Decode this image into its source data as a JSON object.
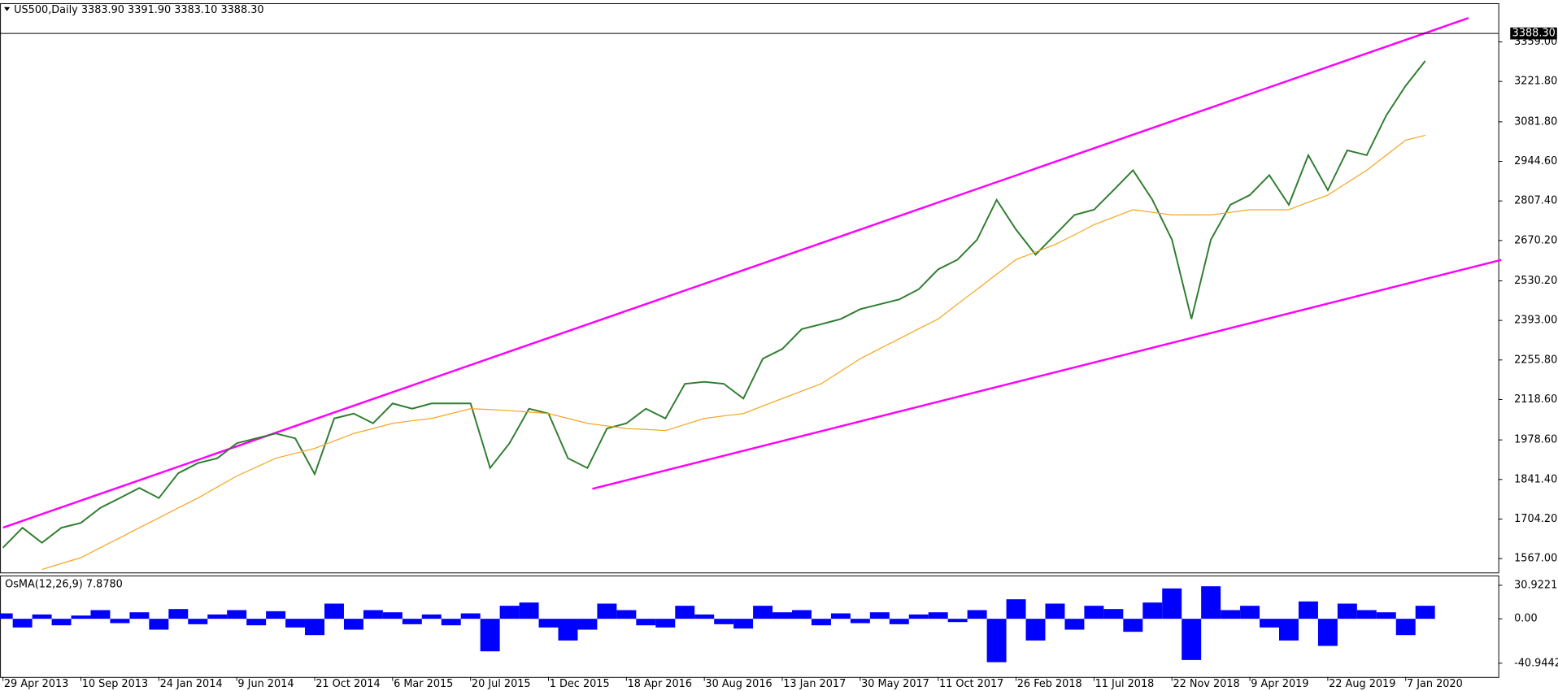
{
  "header": {
    "title": "US500,Daily  3383.90 3391.90 3383.10 3388.30"
  },
  "chart_data": [
    {
      "type": "line",
      "categories": [
        "29 Apr 2013",
        null,
        null,
        null,
        "10 Sep 2013",
        null,
        null,
        null,
        "24 Jan 2014",
        null,
        null,
        null,
        "9 Jun 2014",
        null,
        null,
        null,
        "21 Oct 2014",
        null,
        null,
        null,
        "6 Mar 2015",
        null,
        null,
        null,
        "20 Jul 2015",
        null,
        null,
        null,
        "1 Dec 2015",
        null,
        null,
        null,
        "18 Apr 2016",
        null,
        null,
        null,
        "30 Aug 2016",
        null,
        null,
        null,
        "13 Jan 2017",
        null,
        null,
        null,
        "30 May 2017",
        null,
        null,
        null,
        "11 Oct 2017",
        null,
        null,
        null,
        "26 Feb 2018",
        null,
        null,
        null,
        "11 Jul 2018",
        null,
        null,
        null,
        "22 Nov 2018",
        null,
        null,
        null,
        "9 Apr 2019",
        null,
        null,
        null,
        "22 Aug 2019",
        null,
        null,
        null,
        "7 Jan 2020",
        null
      ],
      "series": [
        {
          "color": "#2f7d2f",
          "values": [
            1605,
            1674,
            1622,
            1674,
            1691,
            1743,
            1777,
            1812,
            1777,
            1863,
            1898,
            1915,
            1967,
            1984,
            2001,
            1984,
            1860,
            2053,
            2070,
            2036,
            2105,
            2087,
            2105,
            2105,
            2105,
            1881,
            1967,
            2087,
            2070,
            1915,
            1881,
            2018,
            2036,
            2087,
            2053,
            2173,
            2180,
            2173,
            2122,
            2260,
            2294,
            2363,
            2380,
            2398,
            2432,
            2449,
            2466,
            2501,
            2570,
            2604,
            2673,
            2811,
            2708,
            2621,
            2690,
            2759,
            2777,
            2845,
            2914,
            2811,
            2673,
            2398,
            2673,
            2794,
            2828,
            2897,
            2794,
            2966,
            2845,
            2983,
            2966,
            3104,
            3207,
            3293
          ]
        },
        {
          "color": "#f5a623",
          "values": [
            null,
            null,
            1529,
            1550,
            1570,
            1605,
            1639,
            1674,
            1708,
            1743,
            1777,
            1815,
            1853,
            1884,
            1915,
            1932,
            1949,
            1975,
            2001,
            2018,
            2036,
            2045,
            2053,
            2070,
            2087,
            2084,
            2080,
            2075,
            2070,
            2053,
            2036,
            2027,
            2018,
            2015,
            2011,
            2032,
            2053,
            2062,
            2070,
            2096,
            2122,
            2148,
            2173,
            2217,
            2260,
            2295,
            2329,
            2364,
            2398,
            2450,
            2501,
            2553,
            2604,
            2630,
            2656,
            2690,
            2725,
            2751,
            2777,
            2768,
            2759,
            2759,
            2759,
            2768,
            2777,
            2777,
            2777,
            2803,
            2828,
            2871,
            2914,
            2966,
            3018,
            3035
          ]
        }
      ],
      "ylim": [
        1519,
        3490
      ],
      "yticks": [
        {
          "value": 1567,
          "label": "1567.00"
        },
        {
          "value": 1704.2,
          "label": "1704.20"
        },
        {
          "value": 1841.4,
          "label": "1841.40"
        },
        {
          "value": 1978.6,
          "label": "1978.60"
        },
        {
          "value": 2118.6,
          "label": "2118.60"
        },
        {
          "value": 2255.8,
          "label": "2255.80"
        },
        {
          "value": 2393,
          "label": "2393.00"
        },
        {
          "value": 2530.2,
          "label": "2530.20"
        },
        {
          "value": 2670.2,
          "label": "2670.20"
        },
        {
          "value": 2807.4,
          "label": "2807.40"
        },
        {
          "value": 2944.6,
          "label": "2944.60"
        },
        {
          "value": 3081.8,
          "label": "3081.80"
        },
        {
          "value": 3221.8,
          "label": "3221.80"
        },
        {
          "value": 3359,
          "label": "3359.00"
        }
      ],
      "last_price": {
        "value": 3388.3,
        "label": "3388.30"
      }
    },
    {
      "type": "bar",
      "title": "OsMA(12,26,9) 7.8780",
      "color": "#0000ff",
      "values": [
        5,
        -8,
        4,
        -6,
        3,
        8,
        -4,
        6,
        -10,
        9,
        -5,
        4,
        8,
        -6,
        7,
        -8,
        -15,
        14,
        -10,
        8,
        6,
        -5,
        4,
        -6,
        5,
        -30,
        12,
        15,
        -8,
        -20,
        -10,
        14,
        8,
        -6,
        -8,
        12,
        4,
        -5,
        -9,
        12,
        6,
        8,
        -6,
        5,
        -4,
        6,
        -5,
        4,
        6,
        -3,
        8,
        -40,
        18,
        -20,
        14,
        -10,
        12,
        9,
        -12,
        15,
        28,
        -38,
        30,
        8,
        12,
        -8,
        -20,
        16,
        -25,
        14,
        8,
        6,
        -15,
        12
      ],
      "ylim": [
        -53.6,
        39.1
      ],
      "yticks": [
        {
          "value": 30.9221,
          "label": "30.9221"
        },
        {
          "value": 0,
          "label": "0.00"
        },
        {
          "value": -40.9442,
          "label": "-40.9442"
        }
      ]
    }
  ]
}
